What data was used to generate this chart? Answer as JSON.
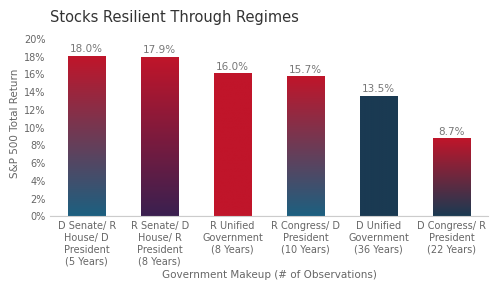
{
  "title": "Stocks Resilient Through Regimes",
  "categories": [
    "D Senate/ R\nHouse/ D\nPresident\n(5 Years)",
    "R Senate/ D\nHouse/ R\nPresident\n(8 Years)",
    "R Unified\nGovernment\n(8 Years)",
    "R Congress/ D\nPresident\n(10 Years)",
    "D Unified\nGovernment\n(36 Years)",
    "D Congress/ R\nPresident\n(22 Years)"
  ],
  "values": [
    18.0,
    17.9,
    16.0,
    15.7,
    13.5,
    8.7
  ],
  "bar_top_colors": [
    "#c0152a",
    "#c0152a",
    "#c0152a",
    "#c0152a",
    "#1a3a52",
    "#c0152a"
  ],
  "bar_bot_colors": [
    "#1c6080",
    "#3a2050",
    "#c0152a",
    "#1c6080",
    "#1a3a52",
    "#1a3a52"
  ],
  "xlabel": "Government Makeup (# of Observations)",
  "ylabel": "S&P 500 Total Return",
  "ylim": [
    0,
    21
  ],
  "yticks": [
    0,
    2,
    4,
    6,
    8,
    10,
    12,
    14,
    16,
    18,
    20
  ],
  "ytick_labels": [
    "0%",
    "2%",
    "4%",
    "6%",
    "8%",
    "10%",
    "12%",
    "14%",
    "16%",
    "18%",
    "20%"
  ],
  "background_color": "#ffffff",
  "title_fontsize": 10.5,
  "tick_fontsize": 7,
  "value_label_fontsize": 7.5,
  "axis_label_fontsize": 7.5,
  "bar_width": 0.52
}
